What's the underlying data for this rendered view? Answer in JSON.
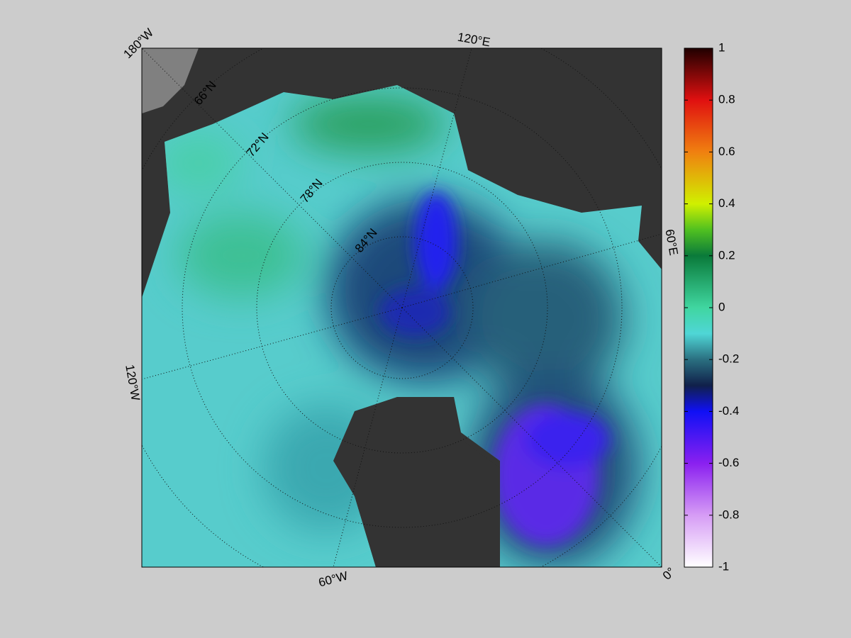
{
  "map": {
    "longitude_labels": [
      "180°W",
      "120°E",
      "60°E",
      "0°",
      "60°W",
      "120°W"
    ],
    "latitude_labels": [
      "66°N",
      "72°N",
      "78°N",
      "84°N"
    ]
  },
  "colorbar": {
    "lim": [
      -1,
      1
    ],
    "ticks": [
      -1,
      -0.8,
      -0.6,
      -0.4,
      -0.2,
      0,
      0.2,
      0.4,
      0.6,
      0.8,
      1
    ]
  }
}
